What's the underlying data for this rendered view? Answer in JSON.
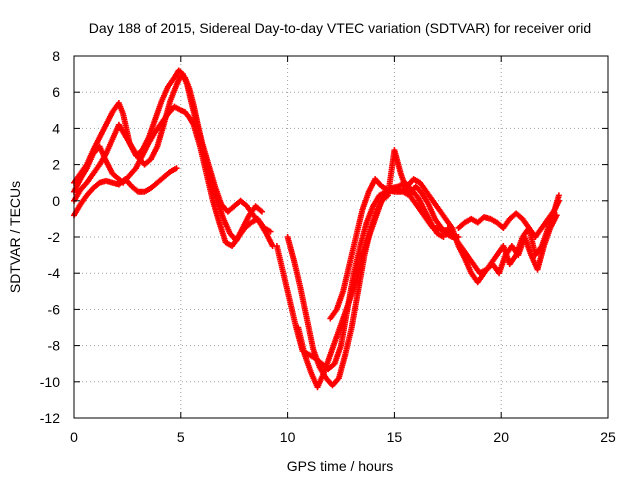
{
  "chart_data": {
    "type": "scatter",
    "title": "Day 188 of 2015, Sidereal Day-to-day VTEC variation (SDTVAR) for receiver orid",
    "xlabel": "GPS time / hours",
    "ylabel": "SDTVAR / TECUs",
    "xlim": [
      0,
      25
    ],
    "ylim": [
      -12,
      8
    ],
    "xticks": [
      0,
      5,
      10,
      15,
      20,
      25
    ],
    "yticks": [
      -12,
      -10,
      -8,
      -6,
      -4,
      -2,
      0,
      2,
      4,
      6,
      8
    ],
    "grid": true,
    "legend": "none",
    "marker": "plus",
    "color": "#ff0000",
    "series": [
      {
        "x": [
          0.0,
          0.3,
          0.6,
          0.9,
          1.2,
          1.5,
          1.8,
          2.1,
          2.3,
          2.6,
          2.9,
          3.2,
          3.5,
          3.8,
          4.1,
          4.4,
          4.7,
          5.0,
          5.2,
          5.4,
          5.6,
          5.9,
          6.2,
          6.5,
          6.8,
          7.1,
          7.4,
          7.7,
          8.0,
          8.3,
          8.6,
          8.9,
          9.2
        ],
        "y": [
          0.5,
          1.2,
          1.8,
          2.6,
          3.0,
          2.2,
          1.5,
          1.2,
          1.0,
          1.4,
          1.8,
          2.5,
          3.2,
          3.8,
          4.3,
          4.8,
          5.2,
          5.0,
          4.9,
          4.6,
          4.2,
          3.0,
          1.5,
          0.0,
          -1.2,
          -2.3,
          -2.5,
          -2.0,
          -1.5,
          -1.2,
          -1.0,
          -1.5,
          -1.7
        ]
      },
      {
        "x": [
          0.0,
          0.3,
          0.6,
          0.9,
          1.2,
          1.5,
          1.8,
          2.1,
          2.4,
          2.7,
          3.0,
          3.3,
          3.6,
          3.9,
          4.2,
          4.5,
          4.8,
          5.0,
          5.2,
          5.4,
          5.6,
          5.8,
          6.0,
          6.3,
          6.6,
          6.9,
          7.2,
          7.5,
          7.8,
          8.1,
          8.4,
          8.7,
          9.0,
          9.3
        ],
        "y": [
          0.0,
          0.6,
          1.0,
          1.5,
          2.0,
          2.6,
          3.4,
          4.2,
          3.6,
          3.0,
          2.4,
          2.0,
          2.3,
          3.0,
          4.2,
          5.5,
          6.4,
          6.9,
          6.8,
          6.2,
          5.3,
          4.2,
          3.2,
          2.0,
          0.8,
          -0.2,
          -0.6,
          -0.3,
          0.0,
          -0.3,
          -0.8,
          -1.2,
          -1.8,
          -2.5
        ]
      },
      {
        "x": [
          0.0,
          0.3,
          0.6,
          0.9,
          1.2,
          1.5,
          1.8,
          2.1,
          2.3,
          2.6,
          2.9,
          3.2,
          3.5,
          3.8,
          4.1,
          4.4,
          4.7,
          4.9,
          5.1,
          5.3,
          5.5,
          5.8,
          6.1,
          6.4,
          6.7,
          7.0,
          7.3,
          7.6,
          7.9,
          8.2,
          8.5,
          8.8
        ],
        "y": [
          1.0,
          1.5,
          2.0,
          2.8,
          3.5,
          4.2,
          4.9,
          5.4,
          4.8,
          3.2,
          2.5,
          2.8,
          3.5,
          4.5,
          5.5,
          6.3,
          6.8,
          7.2,
          7.0,
          6.4,
          5.4,
          4.0,
          2.5,
          1.0,
          0.0,
          -1.0,
          -1.8,
          -2.2,
          -1.5,
          -0.8,
          -0.3,
          -0.6
        ]
      },
      {
        "x": [
          0.0,
          0.3,
          0.6,
          0.9,
          1.2,
          1.5,
          1.8,
          2.1,
          2.4,
          2.7,
          3.0,
          3.3,
          3.6,
          3.9,
          4.2,
          4.5,
          4.8
        ],
        "y": [
          -0.8,
          -0.2,
          0.3,
          0.7,
          1.0,
          1.1,
          1.0,
          0.9,
          1.2,
          0.8,
          0.5,
          0.5,
          0.7,
          1.0,
          1.3,
          1.6,
          1.8
        ]
      },
      {
        "x": [
          10.0,
          10.3,
          10.6,
          10.9,
          11.2,
          11.5,
          11.8,
          12.1,
          12.4,
          12.7,
          13.0,
          13.3,
          13.6,
          13.9,
          14.2,
          14.5,
          14.8,
          15.1,
          15.4,
          15.7,
          16.0,
          16.3,
          16.6,
          16.9,
          17.2,
          17.5
        ],
        "y": [
          -2.0,
          -3.3,
          -4.8,
          -6.5,
          -8.2,
          -9.2,
          -9.8,
          -10.2,
          -9.8,
          -8.5,
          -7.0,
          -5.0,
          -3.0,
          -1.5,
          -0.5,
          0.2,
          0.6,
          0.6,
          0.5,
          0.3,
          0.8,
          0.4,
          -0.2,
          -1.0,
          -1.5,
          -1.8
        ]
      },
      {
        "x": [
          9.5,
          9.8,
          10.1,
          10.4,
          10.7,
          11.0,
          11.3,
          11.6,
          11.9,
          12.2,
          12.5,
          12.8,
          13.1,
          13.4,
          13.7,
          14.0,
          14.3,
          14.6,
          14.9,
          15.2,
          15.5,
          15.8,
          16.1,
          16.4,
          16.7,
          17.0,
          17.3
        ],
        "y": [
          -2.5,
          -4.0,
          -5.5,
          -7.0,
          -8.3,
          -8.5,
          -8.7,
          -9.0,
          -9.3,
          -9.0,
          -8.0,
          -6.0,
          -4.0,
          -2.5,
          -1.2,
          -0.3,
          0.3,
          0.5,
          0.7,
          0.8,
          1.0,
          0.6,
          0.2,
          -0.5,
          -1.2,
          -1.8,
          -2.0
        ]
      },
      {
        "x": [
          10.5,
          10.8,
          11.1,
          11.4,
          11.7,
          12.0,
          12.3,
          12.6,
          12.9,
          13.2,
          13.5,
          13.8,
          14.1,
          14.4,
          14.7,
          15.0,
          15.3,
          15.6,
          15.9,
          16.2,
          16.5,
          16.8,
          17.1,
          17.4,
          17.7,
          18.0
        ],
        "y": [
          -7.0,
          -8.5,
          -9.5,
          -10.3,
          -9.5,
          -8.5,
          -7.5,
          -6.5,
          -5.5,
          -4.5,
          -3.0,
          -2.0,
          -1.0,
          0.0,
          0.3,
          2.8,
          1.5,
          0.5,
          0.0,
          -0.5,
          -1.0,
          -1.5,
          -1.5,
          -1.8,
          -2.0,
          -2.0
        ]
      },
      {
        "x": [
          12.0,
          12.3,
          12.6,
          12.9,
          13.2,
          13.5,
          13.8,
          14.1,
          14.4,
          14.7,
          15.0,
          15.3,
          15.6,
          15.9,
          16.2,
          16.5,
          16.8,
          17.1,
          17.4,
          17.7,
          18.0,
          18.3,
          18.6,
          18.9,
          19.2,
          19.5,
          19.8,
          20.1,
          20.4,
          20.7,
          21.0,
          21.3,
          21.6,
          21.9,
          22.2,
          22.5,
          22.7
        ],
        "y": [
          -6.5,
          -6.0,
          -5.0,
          -3.5,
          -2.0,
          -0.5,
          0.5,
          1.2,
          0.8,
          0.6,
          0.5,
          0.5,
          0.8,
          1.2,
          1.0,
          0.5,
          0.0,
          -0.5,
          -1.0,
          -1.5,
          -2.5,
          -3.2,
          -4.0,
          -4.5,
          -4.0,
          -3.5,
          -3.0,
          -2.5,
          -3.5,
          -3.0,
          -2.0,
          -1.5,
          -3.0,
          -2.5,
          -1.5,
          -0.5,
          0.3
        ]
      },
      {
        "x": [
          17.5,
          17.8,
          18.1,
          18.4,
          18.7,
          19.0,
          19.3,
          19.6,
          19.9,
          20.2,
          20.5,
          20.8,
          21.1,
          21.4,
          21.7,
          22.0,
          22.3,
          22.6
        ],
        "y": [
          -1.5,
          -2.0,
          -2.5,
          -3.0,
          -3.5,
          -4.0,
          -3.8,
          -3.5,
          -4.0,
          -3.0,
          -2.5,
          -3.0,
          -2.0,
          -3.0,
          -3.8,
          -2.5,
          -1.5,
          -0.8
        ]
      },
      {
        "x": [
          18.0,
          18.3,
          18.6,
          18.9,
          19.2,
          19.5,
          19.8,
          20.1,
          20.4,
          20.7,
          21.0,
          21.3,
          21.6,
          21.9,
          22.2,
          22.5,
          22.7
        ],
        "y": [
          -1.5,
          -1.2,
          -1.0,
          -1.2,
          -0.9,
          -1.0,
          -1.2,
          -1.5,
          -1.0,
          -0.7,
          -1.0,
          -1.5,
          -2.0,
          -1.5,
          -1.0,
          -0.5,
          0.0
        ]
      }
    ]
  }
}
